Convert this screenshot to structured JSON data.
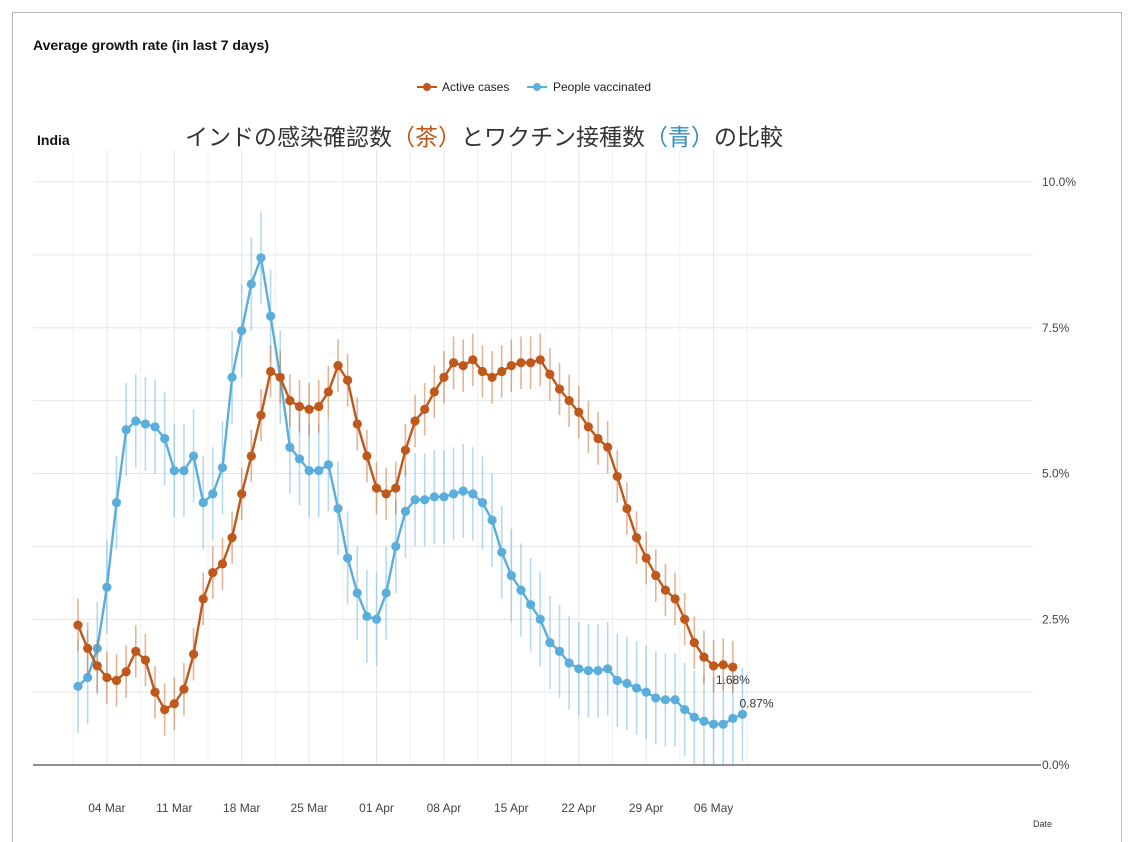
{
  "chart_data": {
    "type": "line",
    "title": "Average growth rate (in last 7 days)",
    "subtitle_region": "India",
    "annotation": {
      "prefix": "インドの感染確認数",
      "tag1": "（茶）",
      "middle": "とワクチン接種数",
      "tag2": "（青）",
      "suffix": "の比較"
    },
    "xlabel": "Date",
    "ylabel": "",
    "ylim": [
      0,
      10.5
    ],
    "yticks": [
      0,
      2.5,
      5,
      7.5,
      10
    ],
    "ytick_labels": [
      "0.0%",
      "2.5%",
      "5.0%",
      "7.5%",
      "10.0%"
    ],
    "xticks": [
      3,
      10,
      17,
      24,
      31,
      38,
      45,
      52,
      59,
      66
    ],
    "xtick_labels": [
      "04 Mar",
      "11 Mar",
      "18 Mar",
      "25 Mar",
      "01 Apr",
      "08 Apr",
      "15 Apr",
      "22 Apr",
      "29 Apr",
      "06 May"
    ],
    "x_start": 0,
    "legend_position": "top-center",
    "series": [
      {
        "name": "Active cases",
        "color": "#c0571b",
        "error": 0.45,
        "end_label": "1.68%",
        "values": [
          2.4,
          2.0,
          1.7,
          1.5,
          1.45,
          1.6,
          1.95,
          1.8,
          1.25,
          0.95,
          1.05,
          1.3,
          1.9,
          2.85,
          3.3,
          3.45,
          3.9,
          4.65,
          5.3,
          6.0,
          6.75,
          6.65,
          6.25,
          6.15,
          6.1,
          6.15,
          6.4,
          6.85,
          6.6,
          5.85,
          5.3,
          4.75,
          4.65,
          4.75,
          5.4,
          5.9,
          6.1,
          6.4,
          6.65,
          6.9,
          6.85,
          6.95,
          6.75,
          6.65,
          6.75,
          6.85,
          6.9,
          6.9,
          6.95,
          6.7,
          6.45,
          6.25,
          6.05,
          5.8,
          5.6,
          5.45,
          4.95,
          4.4,
          3.9,
          3.55,
          3.25,
          3.0,
          2.85,
          2.5,
          2.1,
          1.85,
          1.7,
          1.72,
          1.68
        ]
      },
      {
        "name": "People vaccinated",
        "color": "#5aaedb",
        "error": 0.8,
        "end_label": "0.87%",
        "values": [
          1.35,
          1.5,
          2.0,
          3.05,
          4.5,
          5.75,
          5.9,
          5.85,
          5.8,
          5.6,
          5.05,
          5.05,
          5.3,
          4.5,
          4.65,
          5.1,
          6.65,
          7.45,
          8.25,
          8.7,
          7.7,
          6.65,
          5.45,
          5.25,
          5.05,
          5.05,
          5.15,
          4.4,
          3.55,
          2.95,
          2.55,
          2.5,
          2.95,
          3.75,
          4.35,
          4.55,
          4.55,
          4.6,
          4.6,
          4.65,
          4.7,
          4.65,
          4.5,
          4.2,
          3.65,
          3.25,
          3.0,
          2.75,
          2.5,
          2.1,
          1.95,
          1.75,
          1.65,
          1.62,
          1.62,
          1.65,
          1.45,
          1.4,
          1.32,
          1.25,
          1.15,
          1.12,
          1.12,
          0.95,
          0.82,
          0.75,
          0.7,
          0.7,
          0.8,
          0.87
        ]
      }
    ]
  }
}
